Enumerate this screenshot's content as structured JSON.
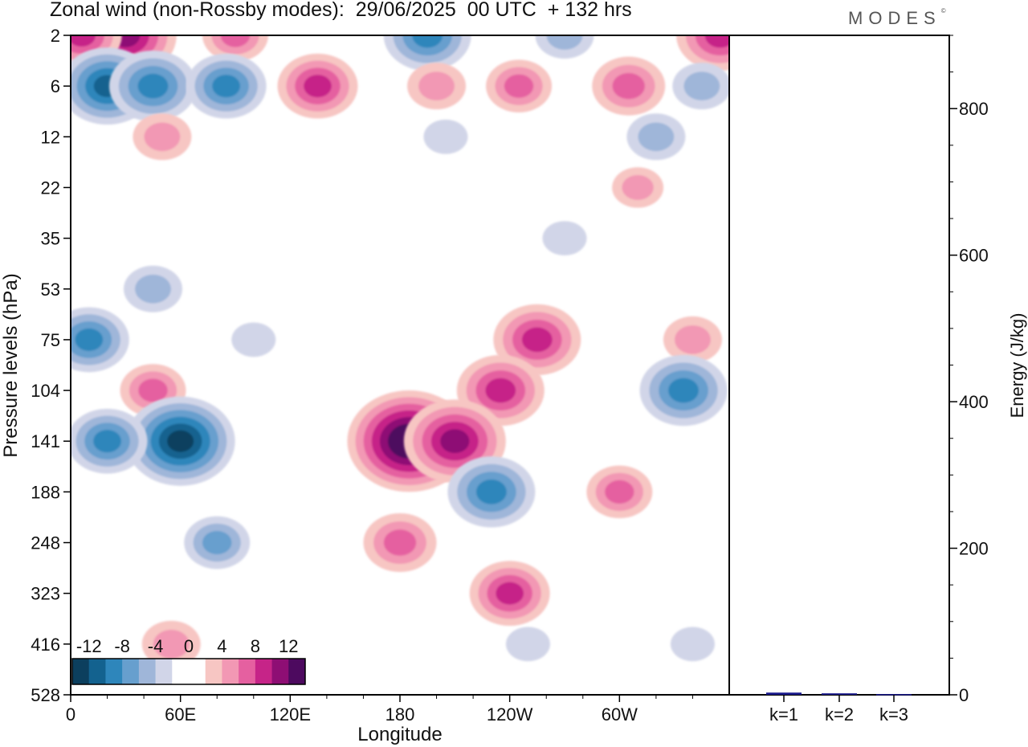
{
  "title": "Zonal wind (non-Rossby modes):  29/06/2025  00 UTC  + 132 hrs",
  "logo": "MODES",
  "logo_mark": "©",
  "chart_data": [
    {
      "type": "heatmap",
      "xlabel": "Longitude",
      "ylabel": "Pressure levels (hPa)",
      "x_ticks": [
        "0",
        "60E",
        "120E",
        "180",
        "120W",
        "60W"
      ],
      "x_tick_values": [
        0,
        60,
        120,
        180,
        240,
        300
      ],
      "xlim": [
        0,
        360
      ],
      "y_ticks": [
        "2",
        "6",
        "12",
        "22",
        "35",
        "53",
        "75",
        "104",
        "141",
        "188",
        "248",
        "323",
        "416",
        "528"
      ],
      "colorbar": {
        "labels": [
          "-12",
          "-8",
          "-4",
          "0",
          "4",
          "8",
          "12"
        ],
        "label_values": [
          -12,
          -8,
          -4,
          0,
          4,
          8,
          12
        ],
        "colors": [
          "#0c3f5e",
          "#13628f",
          "#2e86bb",
          "#679fce",
          "#9fb6d9",
          "#d1d5e8",
          "#ffffff",
          "#ffffff",
          "#f7c6c3",
          "#f298b4",
          "#e560a0",
          "#c62488",
          "#8e0e74",
          "#4d0a5f"
        ]
      },
      "cells": [
        {
          "lon": 30,
          "p": "2",
          "v": 11
        },
        {
          "lon": 6,
          "p": "2",
          "v": 8
        },
        {
          "lon": 90,
          "p": "2",
          "v": 6
        },
        {
          "lon": 195,
          "p": "2",
          "v": -9
        },
        {
          "lon": 270,
          "p": "2",
          "v": -5
        },
        {
          "lon": 355,
          "p": "2",
          "v": 9
        },
        {
          "lon": 20,
          "p": "6",
          "v": -10
        },
        {
          "lon": 45,
          "p": "6",
          "v": -9
        },
        {
          "lon": 85,
          "p": "6",
          "v": -8
        },
        {
          "lon": 135,
          "p": "6",
          "v": 8
        },
        {
          "lon": 200,
          "p": "6",
          "v": 5
        },
        {
          "lon": 245,
          "p": "6",
          "v": 6
        },
        {
          "lon": 305,
          "p": "6",
          "v": 7
        },
        {
          "lon": 345,
          "p": "6",
          "v": -5
        },
        {
          "lon": 50,
          "p": "12",
          "v": 5
        },
        {
          "lon": 320,
          "p": "12",
          "v": -5
        },
        {
          "lon": 205,
          "p": "12",
          "v": -3
        },
        {
          "lon": 310,
          "p": "22",
          "v": 4
        },
        {
          "lon": 270,
          "p": "35",
          "v": -3
        },
        {
          "lon": 45,
          "p": "53",
          "v": -5
        },
        {
          "lon": 340,
          "p": "75",
          "v": 5
        },
        {
          "lon": 10,
          "p": "75",
          "v": -8
        },
        {
          "lon": 100,
          "p": "75",
          "v": -3
        },
        {
          "lon": 255,
          "p": "75",
          "v": 9
        },
        {
          "lon": 235,
          "p": "104",
          "v": 9
        },
        {
          "lon": 335,
          "p": "104",
          "v": -9
        },
        {
          "lon": 45,
          "p": "104",
          "v": 6
        },
        {
          "lon": 60,
          "p": "141",
          "v": -12
        },
        {
          "lon": 20,
          "p": "141",
          "v": -8
        },
        {
          "lon": 185,
          "p": "141",
          "v": 14
        },
        {
          "lon": 210,
          "p": "141",
          "v": 11
        },
        {
          "lon": 230,
          "p": "188",
          "v": -9
        },
        {
          "lon": 300,
          "p": "188",
          "v": 6
        },
        {
          "lon": 80,
          "p": "248",
          "v": -6
        },
        {
          "lon": 180,
          "p": "248",
          "v": 7
        },
        {
          "lon": 240,
          "p": "323",
          "v": 8
        },
        {
          "lon": 55,
          "p": "416",
          "v": 5
        },
        {
          "lon": 250,
          "p": "416",
          "v": -3
        },
        {
          "lon": 340,
          "p": "416",
          "v": -3
        }
      ]
    },
    {
      "type": "bar",
      "ylabel": "Energy (J/kg)",
      "categories": [
        "k=1",
        "k=2",
        "k=3"
      ],
      "values": [
        3,
        2,
        1
      ],
      "ylim": [
        0,
        900
      ],
      "y_ticks": [
        "0",
        "200",
        "400",
        "600",
        "800"
      ],
      "y_tick_values": [
        0,
        200,
        400,
        600,
        800
      ],
      "bar_color": "#1a1a8c"
    }
  ]
}
